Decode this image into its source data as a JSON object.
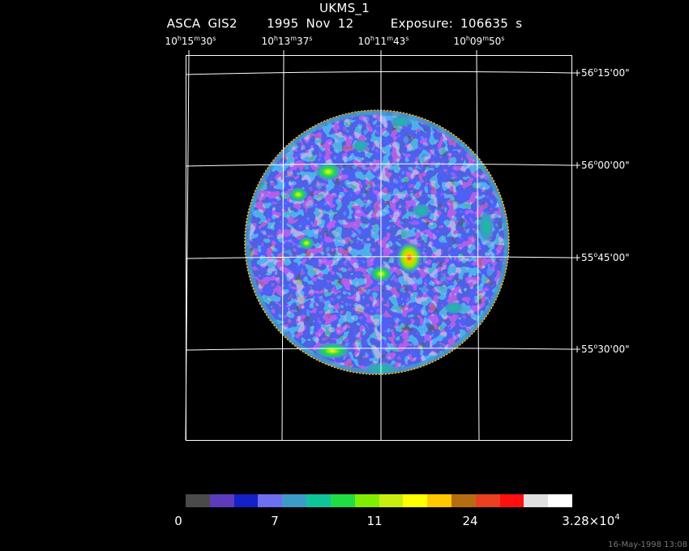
{
  "title": {
    "line1": "UKMS_1",
    "instrument": "ASCA GIS2",
    "date": "1995 Nov 12",
    "exposure": "Exposure: 106635 s"
  },
  "ra_ticks": [
    {
      "h": "10",
      "m": "15",
      "s": "30"
    },
    {
      "h": "10",
      "m": "13",
      "s": "37"
    },
    {
      "h": "10",
      "m": "11",
      "s": "43"
    },
    {
      "h": "10",
      "m": "09",
      "s": "50"
    }
  ],
  "dec_ticks": [
    {
      "d": "+56",
      "m": "15",
      "s": "00"
    },
    {
      "d": "+56",
      "m": "00",
      "s": "00"
    },
    {
      "d": "+55",
      "m": "45",
      "s": "00"
    },
    {
      "d": "+55",
      "m": "30",
      "s": "00"
    }
  ],
  "colorbar": {
    "colors": [
      "#4a4a4a",
      "#5c3bbd",
      "#1420c8",
      "#6e6ef0",
      "#3d9bc7",
      "#10c49a",
      "#20dc45",
      "#80ee00",
      "#c8ee10",
      "#ffff00",
      "#ffc800",
      "#b86c10",
      "#e84020",
      "#ff1010",
      "#e0e0e0",
      "#ffffff"
    ],
    "labels": [
      "0",
      "7",
      "11",
      "24"
    ],
    "max_label_base": "3.28×10",
    "max_label_exp": "4"
  },
  "timestamp": "16-May-1998 13:08"
}
